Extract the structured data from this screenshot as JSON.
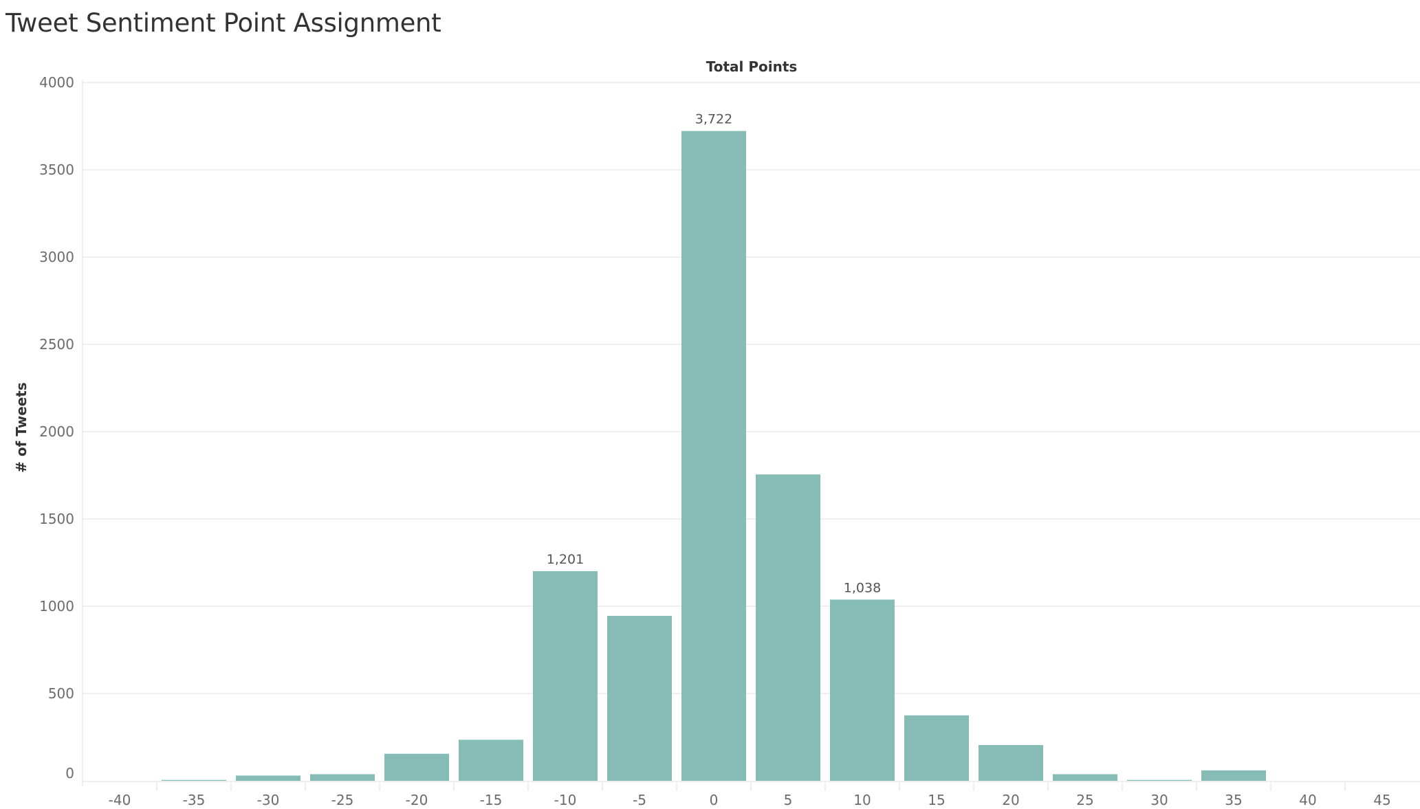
{
  "title": "Tweet Sentiment Point Assignment",
  "colors": {
    "bar": "#86bcb6",
    "grid": "#ececec",
    "divider": "#e8e8e8"
  },
  "chart_data": {
    "type": "bar",
    "title": "Tweet Sentiment Point Assignment",
    "xlabel": "Total Points",
    "ylabel": "# of Tweets",
    "ylim": [
      0,
      4000
    ],
    "yticks": [
      0,
      500,
      1000,
      1500,
      2000,
      2500,
      3000,
      3500,
      4000
    ],
    "grid": true,
    "categories": [
      "-40",
      "-35",
      "-30",
      "-25",
      "-20",
      "-15",
      "-10",
      "-5",
      "0",
      "5",
      "10",
      "15",
      "20",
      "25",
      "30",
      "35",
      "40",
      "45"
    ],
    "values": [
      0,
      5,
      30,
      38,
      155,
      235,
      1201,
      945,
      3722,
      1755,
      1038,
      375,
      205,
      38,
      5,
      60,
      0,
      0
    ],
    "data_labels": [
      {
        "category": "-10",
        "text": "1,201"
      },
      {
        "category": "0",
        "text": "3,722"
      },
      {
        "category": "10",
        "text": "1,038"
      }
    ]
  }
}
